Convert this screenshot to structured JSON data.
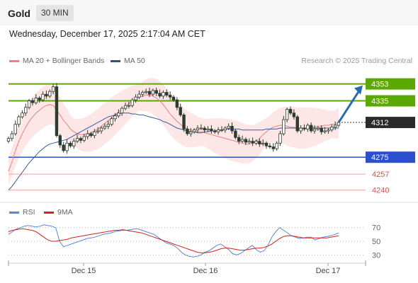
{
  "header": {
    "title": "Gold",
    "timeframe": "30 MIN",
    "datetime": "Wednesday, December 17, 2025 2:17:04 AM CET"
  },
  "legend": {
    "ma20_label": "MA 20 + Bollinger Bands",
    "ma50_label": "MA 50",
    "source": "Research © 2025 Trading Central"
  },
  "rsi_legend": {
    "rsi_label": "RSI",
    "ma_label": "9MA"
  },
  "colors": {
    "candle": "#2e3b2e",
    "ma20": "#f08080",
    "ma50": "#3a5ba0",
    "bollinger_fill": "#fde6e6",
    "resistance": "#5aa800",
    "support": "#2b4fcf",
    "lower_levels": "#e05050",
    "current_price": "#2a2a2a",
    "arrow": "#2a6ab5",
    "rsi": "#5b86d6",
    "rsi_ma": "#d42020"
  },
  "chart_data": {
    "type": "candlestick",
    "title": "Gold",
    "timeframe": "30 MIN",
    "x_labels": [
      "Dec 15",
      "Dec 16",
      "Dec 17"
    ],
    "ylim": [
      4230,
      4370
    ],
    "levels": [
      {
        "label": "4353",
        "value": 4353,
        "kind": "resistance"
      },
      {
        "label": "4335",
        "value": 4335,
        "kind": "resistance"
      },
      {
        "label": "4312",
        "value": 4312,
        "kind": "current"
      },
      {
        "label": "4275",
        "value": 4275,
        "kind": "support"
      },
      {
        "label": "4257",
        "value": 4257,
        "kind": "minor"
      },
      {
        "label": "4240",
        "value": 4240,
        "kind": "minor"
      }
    ],
    "close_prices": [
      4295,
      4300,
      4310,
      4318,
      4322,
      4328,
      4335,
      4333,
      4338,
      4336,
      4342,
      4340,
      4345,
      4350,
      4298,
      4288,
      4282,
      4290,
      4287,
      4292,
      4295,
      4293,
      4297,
      4300,
      4298,
      4302,
      4303,
      4306,
      4308,
      4310,
      4316,
      4319,
      4322,
      4327,
      4330,
      4330,
      4336,
      4339,
      4342,
      4344,
      4345,
      4342,
      4346,
      4343,
      4340,
      4344,
      4341,
      4339,
      4336,
      4328,
      4320,
      4305,
      4300,
      4302,
      4304,
      4306,
      4306,
      4304,
      4305,
      4303,
      4302,
      4304,
      4304,
      4306,
      4308,
      4303,
      4296,
      4292,
      4294,
      4291,
      4292,
      4290,
      4292,
      4289,
      4290,
      4287,
      4286,
      4284,
      4290,
      4300,
      4315,
      4326,
      4322,
      4318,
      4303,
      4306,
      4305,
      4309,
      4303,
      4305,
      4306,
      4302,
      4303,
      4304,
      4307,
      4309,
      4312
    ],
    "ma20": [
      4260,
      4270,
      4282,
      4292,
      4300,
      4307,
      4313,
      4318,
      4322,
      4325,
      4328,
      4330,
      4331,
      4330,
      4325,
      4320,
      4314,
      4310,
      4305,
      4302,
      4300,
      4299,
      4299,
      4300,
      4301,
      4303,
      4305,
      4308,
      4311,
      4314,
      4317,
      4320,
      4323,
      4326,
      4329,
      4332,
      4335,
      4337,
      4339,
      4340,
      4341,
      4341,
      4340,
      4338,
      4335,
      4331,
      4326,
      4321,
      4317,
      4313,
      4310,
      4307,
      4305,
      4304,
      4303,
      4302,
      4302,
      4301,
      4300,
      4299,
      4298,
      4297,
      4296,
      4295,
      4294,
      4293,
      4292,
      4291,
      4290,
      4289,
      4289,
      4290,
      4292,
      4295,
      4299,
      4302,
      4305,
      4307,
      4308,
      4309,
      4309,
      4308,
      4307,
      4307,
      4306,
      4306,
      4306,
      4306,
      4307,
      4307,
      4308,
      4308,
      4309,
      4309,
      4310,
      4310,
      4311
    ],
    "ma50": [
      4240,
      4244,
      4249,
      4254,
      4259,
      4264,
      4269,
      4273,
      4277,
      4281,
      4284,
      4287,
      4289,
      4290,
      4291,
      4292,
      4293,
      4294,
      4296,
      4298,
      4300,
      4302,
      4304,
      4306,
      4308,
      4310,
      4312,
      4314,
      4316,
      4318,
      4319,
      4320,
      4321,
      4322,
      4322,
      4322,
      4321,
      4321,
      4320,
      4320,
      4319,
      4318,
      4317,
      4316,
      4315,
      4313,
      4312,
      4310,
      4308,
      4306,
      4305,
      4304,
      4303,
      4302,
      4302,
      4301,
      4301,
      4302,
      4302,
      4303,
      4303,
      4304,
      4304,
      4305,
      4305,
      4305,
      4305,
      4305,
      4304,
      4304,
      4304,
      4304,
      4304,
      4304,
      4304,
      4305,
      4305,
      4305,
      4305,
      4306,
      4306,
      4306,
      4306,
      4306,
      4306,
      4306,
      4306,
      4306,
      4306,
      4306,
      4306,
      4306,
      4306,
      4306,
      4306,
      4306,
      4306
    ],
    "rsi": {
      "levels": [
        "70",
        "50",
        "30"
      ],
      "ylim": [
        20,
        80
      ],
      "rsi": [
        60,
        64,
        68,
        70,
        72,
        73,
        72,
        71,
        72,
        74,
        73,
        72,
        70,
        50,
        42,
        44,
        46,
        48,
        50,
        52,
        54,
        55,
        56,
        58,
        60,
        61,
        62,
        64,
        65,
        66,
        66,
        67,
        68,
        68,
        66,
        64,
        62,
        60,
        56,
        52,
        48,
        46,
        44,
        40,
        34,
        30,
        28,
        27,
        28,
        30,
        34,
        36,
        40,
        44,
        46,
        42,
        38,
        32,
        30,
        32,
        36,
        40,
        44,
        38,
        34,
        36,
        44,
        56,
        64,
        70,
        66,
        62,
        58,
        56,
        54,
        55,
        56,
        56,
        52,
        54,
        56,
        57,
        58,
        60,
        62
      ],
      "ma": [
        64,
        66,
        67,
        68,
        68,
        67,
        66,
        64,
        60,
        56,
        52,
        50,
        50,
        51,
        52,
        53,
        55,
        56,
        57,
        58,
        59,
        60,
        61,
        62,
        63,
        64,
        65,
        66,
        66,
        67,
        66,
        65,
        64,
        63,
        62,
        60,
        58,
        56,
        54,
        52,
        50,
        48,
        46,
        44,
        42,
        40,
        38,
        36,
        34,
        33,
        33,
        34,
        35,
        37,
        39,
        40,
        40,
        39,
        38,
        37,
        37,
        38,
        39,
        40,
        40,
        41,
        43,
        46,
        50,
        54,
        57,
        58,
        58,
        57,
        56,
        55,
        55,
        55,
        55,
        55,
        55,
        55,
        56,
        57,
        58
      ]
    }
  }
}
